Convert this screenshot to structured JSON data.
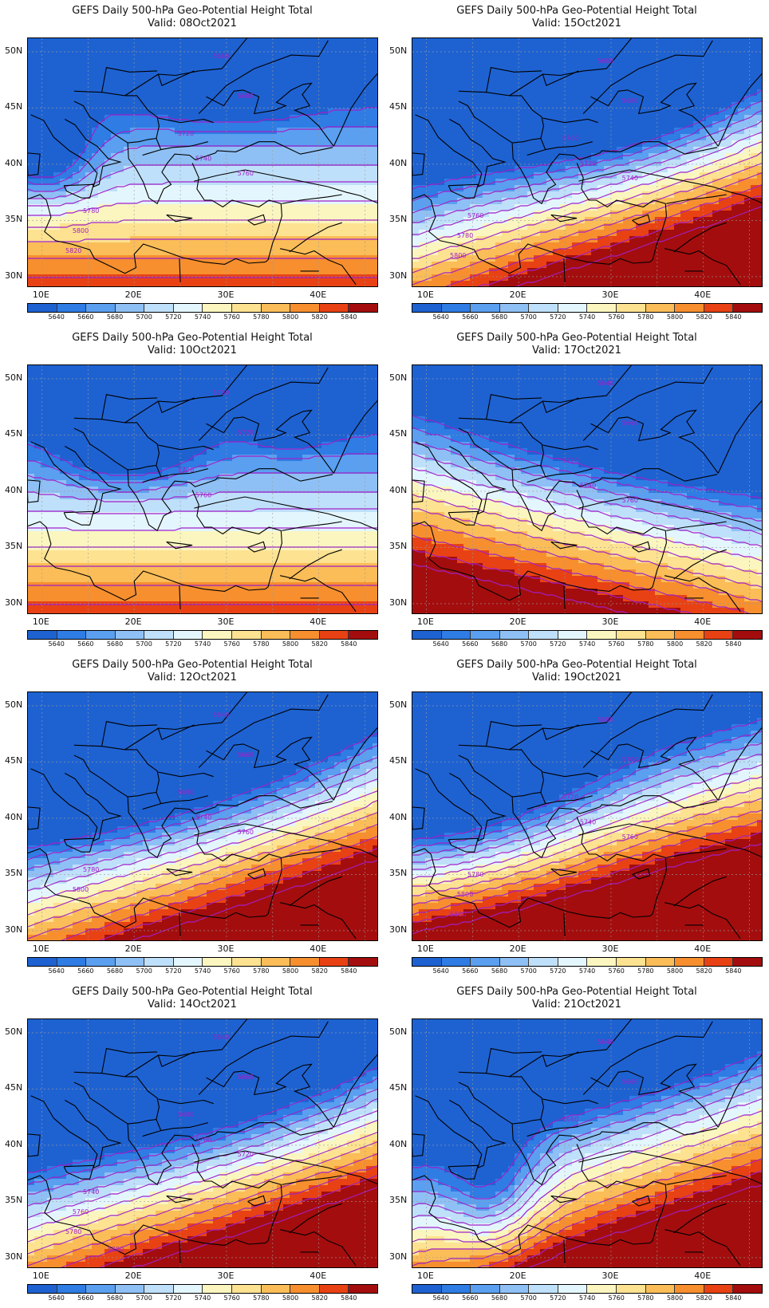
{
  "panels": [
    {
      "title": "GEFS Daily 500-hPa Geo-Potential Height Total",
      "valid": "Valid: 08Oct2021",
      "contours": [
        {
          "text": "5660",
          "v": 5660
        },
        {
          "text": "5680",
          "v": 5680
        },
        {
          "text": "5720",
          "v": 5720
        },
        {
          "text": "5740",
          "v": 5740
        },
        {
          "text": "5760",
          "v": 5760
        },
        {
          "text": "5780",
          "v": 5780
        },
        {
          "text": "5800",
          "v": 5800
        },
        {
          "text": "5820",
          "v": 5820
        }
      ]
    },
    {
      "title": "GEFS Daily 500-hPa Geo-Potential Height Total",
      "valid": "Valid: 15Oct2021",
      "contours": [
        {
          "text": "5660",
          "v": 5660
        },
        {
          "text": "5680",
          "v": 5680
        },
        {
          "text": "5700",
          "v": 5700
        },
        {
          "text": "5720",
          "v": 5720
        },
        {
          "text": "5740",
          "v": 5740
        },
        {
          "text": "5760",
          "v": 5760
        },
        {
          "text": "5780",
          "v": 5780
        },
        {
          "text": "5800",
          "v": 5800
        }
      ]
    },
    {
      "title": "GEFS Daily 500-hPa Geo-Potential Height Total",
      "valid": "Valid: 10Oct2021",
      "contours": [
        {
          "text": "5700",
          "v": 5700
        },
        {
          "text": "5720",
          "v": 5720
        },
        {
          "text": "5720",
          "v": 5720
        },
        {
          "text": "5760",
          "v": 5760
        }
      ]
    },
    {
      "title": "GEFS Daily 500-hPa Geo-Potential Height Total",
      "valid": "Valid: 17Oct2021",
      "contours": [
        {
          "text": "5640",
          "v": 5640
        },
        {
          "text": "5660",
          "v": 5660
        },
        {
          "text": "5720",
          "v": 5720
        },
        {
          "text": "5740",
          "v": 5740
        },
        {
          "text": "5760",
          "v": 5760
        }
      ]
    },
    {
      "title": "GEFS Daily 500-hPa Geo-Potential Height Total",
      "valid": "Valid: 12Oct2021",
      "contours": [
        {
          "text": "5640",
          "v": 5640
        },
        {
          "text": "5660",
          "v": 5660
        },
        {
          "text": "5680",
          "v": 5680
        },
        {
          "text": "5740",
          "v": 5740
        },
        {
          "text": "5760",
          "v": 5760
        },
        {
          "text": "5780",
          "v": 5780
        },
        {
          "text": "5800",
          "v": 5800
        }
      ]
    },
    {
      "title": "GEFS Daily 500-hPa Geo-Potential Height Total",
      "valid": "Valid: 19Oct2021",
      "contours": [
        {
          "text": "5680",
          "v": 5680
        },
        {
          "text": "5700",
          "v": 5700
        },
        {
          "text": "5720",
          "v": 5720
        },
        {
          "text": "5740",
          "v": 5740
        },
        {
          "text": "5760",
          "v": 5760
        },
        {
          "text": "5780",
          "v": 5780
        },
        {
          "text": "5800",
          "v": 5800
        },
        {
          "text": "5800",
          "v": 5800
        }
      ]
    },
    {
      "title": "GEFS Daily 500-hPa Geo-Potential Height Total",
      "valid": "Valid: 14Oct2021",
      "contours": [
        {
          "text": "5640",
          "v": 5640
        },
        {
          "text": "5660",
          "v": 5660
        },
        {
          "text": "5680",
          "v": 5680
        },
        {
          "text": "5700",
          "v": 5700
        },
        {
          "text": "5720",
          "v": 5720
        },
        {
          "text": "5740",
          "v": 5740
        },
        {
          "text": "5760",
          "v": 5760
        },
        {
          "text": "5780",
          "v": 5780
        },
        {
          "text": "5800",
          "v": 5800
        }
      ]
    },
    {
      "title": "GEFS Daily 500-hPa Geo-Potential Height Total",
      "valid": "Valid: 21Oct2021",
      "contours": [
        {
          "text": "5640",
          "v": 5640
        },
        {
          "text": "5660",
          "v": 5660
        },
        {
          "text": "5680",
          "v": 5680
        }
      ]
    }
  ],
  "y_axis_labels": [
    "50N",
    "45N",
    "40N",
    "35N",
    "30N"
  ],
  "x_axis_labels": [
    "10E",
    "20E",
    "30E",
    "40E"
  ],
  "colorbar": {
    "ticks": [
      "5640",
      "5660",
      "5680",
      "5700",
      "5720",
      "5740",
      "5760",
      "5780",
      "5800",
      "5820",
      "5840"
    ],
    "colors": [
      "#1e62d2",
      "#2e7ce4",
      "#5a9ff0",
      "#8fc0f5",
      "#bfe0fa",
      "#e4f6fd",
      "#fbf6bf",
      "#fde291",
      "#fbbd58",
      "#f78f2e",
      "#e84214",
      "#a40d0d"
    ]
  },
  "contour_color": "#a020c8"
}
